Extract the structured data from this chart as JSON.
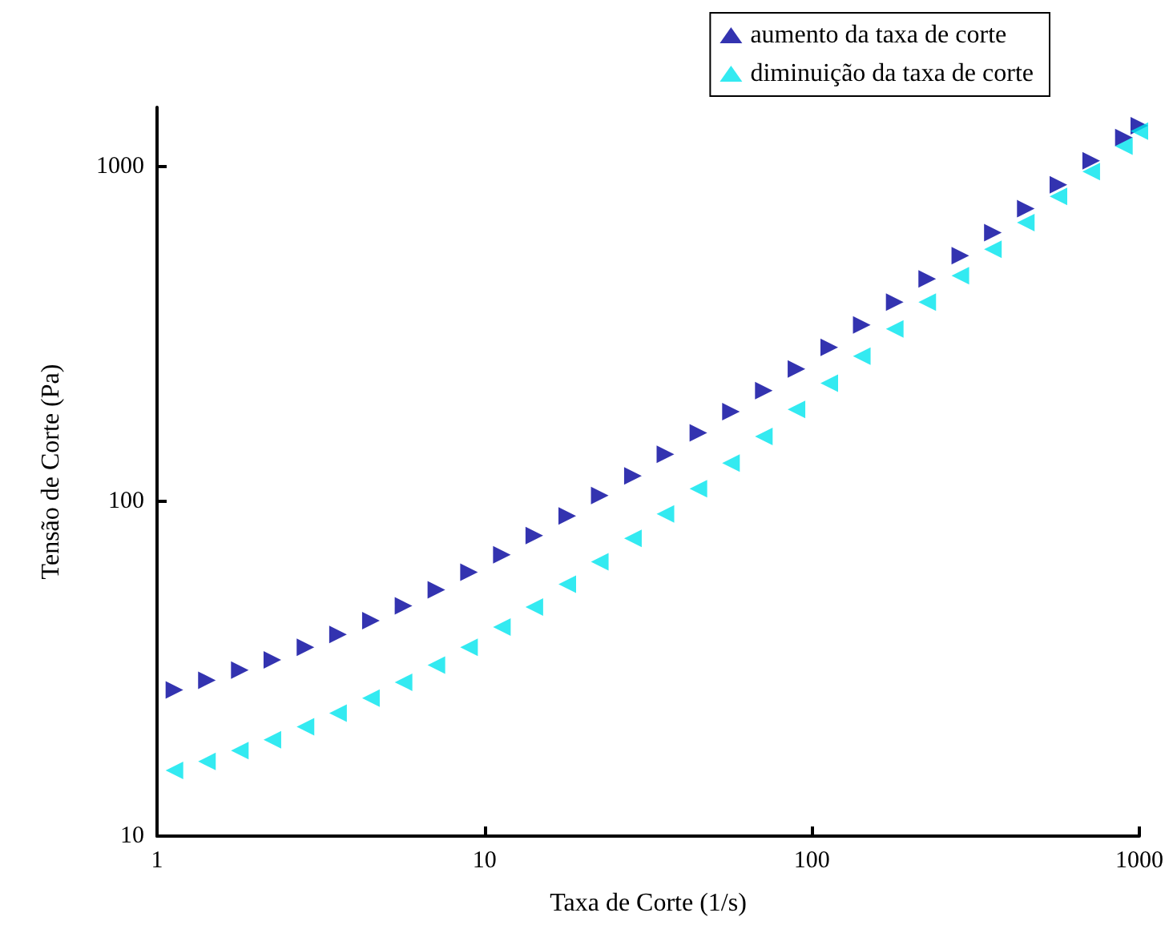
{
  "chart_data": {
    "type": "scatter",
    "xlabel": "Taxa de Corte (1/s)",
    "ylabel": "Tensão de Corte (Pa)",
    "log": "xy",
    "xlim": [
      1,
      1000
    ],
    "xticks": [
      1,
      10,
      100,
      1000
    ],
    "ylim": [
      10,
      1500
    ],
    "yticks": [
      10,
      100,
      1000
    ],
    "grid": false,
    "legend": "top right",
    "marker": "triangle",
    "x": [
      1.13,
      1.42,
      1.79,
      2.25,
      2.84,
      3.57,
      4.5,
      5.66,
      7.13,
      8.97,
      11.3,
      14.2,
      17.9,
      22.5,
      28.4,
      35.7,
      45,
      56.6,
      71.3,
      89.7,
      113,
      142,
      179,
      225,
      284,
      357,
      450,
      566,
      713,
      897,
      1000
    ],
    "series": [
      {
        "name": "aumento da taxa de corte",
        "color": "#00009c",
        "values": [
          27.3,
          29.2,
          31.3,
          33.6,
          36.6,
          40,
          44,
          48.7,
          54.4,
          61.4,
          69.2,
          78.9,
          90.4,
          104,
          119,
          138,
          160,
          185,
          214,
          248,
          288,
          336,
          393,
          461,
          541,
          634,
          747,
          881,
          1038,
          1219,
          1321
        ]
      },
      {
        "name": "diminuição da taxa de corte",
        "color": "#00e5ee",
        "values": [
          15.7,
          16.7,
          18,
          19.4,
          21.2,
          23.3,
          25.8,
          28.8,
          32.4,
          36.6,
          42.1,
          48.3,
          56.5,
          65.9,
          77.4,
          91.6,
          109,
          130,
          156,
          188,
          225,
          271,
          327,
          393,
          471,
          565,
          679,
          813,
          964,
          1148,
          1274
        ]
      }
    ]
  }
}
